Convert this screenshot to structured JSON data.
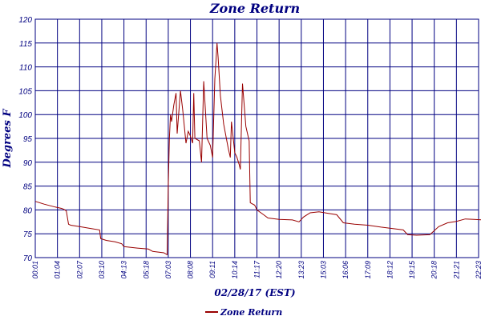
{
  "chart_data": {
    "type": "line",
    "title": "Zone Return",
    "xlabel": "02/28/17 (EST)",
    "ylabel": "Degrees F",
    "ylim": [
      70,
      120
    ],
    "yticks": [
      70,
      75,
      80,
      85,
      90,
      95,
      100,
      105,
      110,
      115,
      120
    ],
    "xticks": [
      "00:01",
      "01:04",
      "02:07",
      "03:10",
      "04:13",
      "05:18",
      "07:03",
      "08:08",
      "09:11",
      "10:14",
      "11:17",
      "12:20",
      "13:23",
      "15:03",
      "16:06",
      "17:09",
      "18:12",
      "19:15",
      "20:18",
      "21:21",
      "22:23"
    ],
    "grid": true,
    "legend_position": "bottom-left",
    "colors": {
      "series": "#990000",
      "grid": "#000080",
      "text": "#000080"
    },
    "series": [
      {
        "name": "Zone Return",
        "points": [
          [
            0.0,
            81.8
          ],
          [
            0.4,
            81.2
          ],
          [
            0.9,
            80.6
          ],
          [
            1.2,
            80.3
          ],
          [
            1.3,
            80.1
          ],
          [
            1.4,
            79.8
          ],
          [
            1.5,
            77.0
          ],
          [
            1.6,
            76.8
          ],
          [
            2.0,
            76.5
          ],
          [
            2.5,
            76.1
          ],
          [
            2.9,
            75.8
          ],
          [
            2.95,
            74.0
          ],
          [
            3.2,
            73.6
          ],
          [
            3.6,
            73.3
          ],
          [
            3.9,
            72.9
          ],
          [
            4.0,
            72.3
          ],
          [
            4.6,
            72.0
          ],
          [
            5.1,
            71.8
          ],
          [
            5.3,
            71.3
          ],
          [
            5.8,
            71.0
          ],
          [
            5.95,
            70.6
          ],
          [
            6.0,
            85.0
          ],
          [
            6.05,
            95.0
          ],
          [
            6.1,
            100.0
          ],
          [
            6.15,
            98.5
          ],
          [
            6.25,
            102.0
          ],
          [
            6.35,
            104.5
          ],
          [
            6.4,
            96.0
          ],
          [
            6.55,
            105.0
          ],
          [
            6.65,
            101.0
          ],
          [
            6.8,
            94.0
          ],
          [
            6.9,
            96.5
          ],
          [
            7.0,
            95.5
          ],
          [
            7.1,
            94.0
          ],
          [
            7.15,
            104.5
          ],
          [
            7.2,
            95.0
          ],
          [
            7.4,
            94.5
          ],
          [
            7.5,
            90.0
          ],
          [
            7.6,
            107.0
          ],
          [
            7.75,
            95.0
          ],
          [
            7.9,
            93.5
          ],
          [
            8.0,
            91.0
          ],
          [
            8.1,
            107.5
          ],
          [
            8.15,
            111.0
          ],
          [
            8.2,
            115.0
          ],
          [
            8.25,
            112.0
          ],
          [
            8.35,
            104.0
          ],
          [
            8.5,
            98.0
          ],
          [
            8.7,
            93.0
          ],
          [
            8.8,
            91.0
          ],
          [
            8.85,
            98.5
          ],
          [
            9.0,
            92.0
          ],
          [
            9.1,
            91.0
          ],
          [
            9.2,
            89.5
          ],
          [
            9.25,
            88.5
          ],
          [
            9.35,
            106.5
          ],
          [
            9.5,
            97.5
          ],
          [
            9.6,
            95.5
          ],
          [
            9.65,
            94.5
          ],
          [
            9.7,
            81.5
          ],
          [
            9.9,
            81.0
          ],
          [
            10.0,
            80.0
          ],
          [
            10.3,
            79.0
          ],
          [
            10.5,
            78.3
          ],
          [
            11.0,
            78.0
          ],
          [
            11.6,
            77.9
          ],
          [
            11.9,
            77.5
          ],
          [
            12.1,
            78.5
          ],
          [
            12.4,
            79.4
          ],
          [
            12.8,
            79.6
          ],
          [
            13.2,
            79.3
          ],
          [
            13.6,
            79.0
          ],
          [
            13.9,
            77.3
          ],
          [
            14.4,
            77.0
          ],
          [
            15.0,
            76.8
          ],
          [
            15.6,
            76.4
          ],
          [
            16.1,
            76.1
          ],
          [
            16.6,
            75.8
          ],
          [
            16.8,
            74.8
          ],
          [
            17.2,
            74.7
          ],
          [
            17.8,
            74.8
          ],
          [
            18.2,
            76.5
          ],
          [
            18.6,
            77.3
          ],
          [
            19.0,
            77.6
          ],
          [
            19.4,
            78.1
          ],
          [
            19.8,
            78.0
          ],
          [
            20.2,
            77.9
          ],
          [
            20.4,
            77.5
          ],
          [
            20.7,
            76.6
          ],
          [
            21.1,
            76.4
          ],
          [
            21.6,
            76.3
          ],
          [
            21.8,
            77.9
          ],
          [
            22.2,
            78.0
          ],
          [
            22.6,
            78.3
          ],
          [
            22.9,
            78.4
          ],
          [
            23.2,
            78.2
          ],
          [
            23.6,
            78.0
          ],
          [
            23.9,
            77.9
          ],
          [
            24.1,
            77.2
          ],
          [
            24.6,
            77.0
          ],
          [
            24.9,
            76.9
          ],
          [
            25.0,
            76.8
          ]
        ]
      }
    ]
  }
}
